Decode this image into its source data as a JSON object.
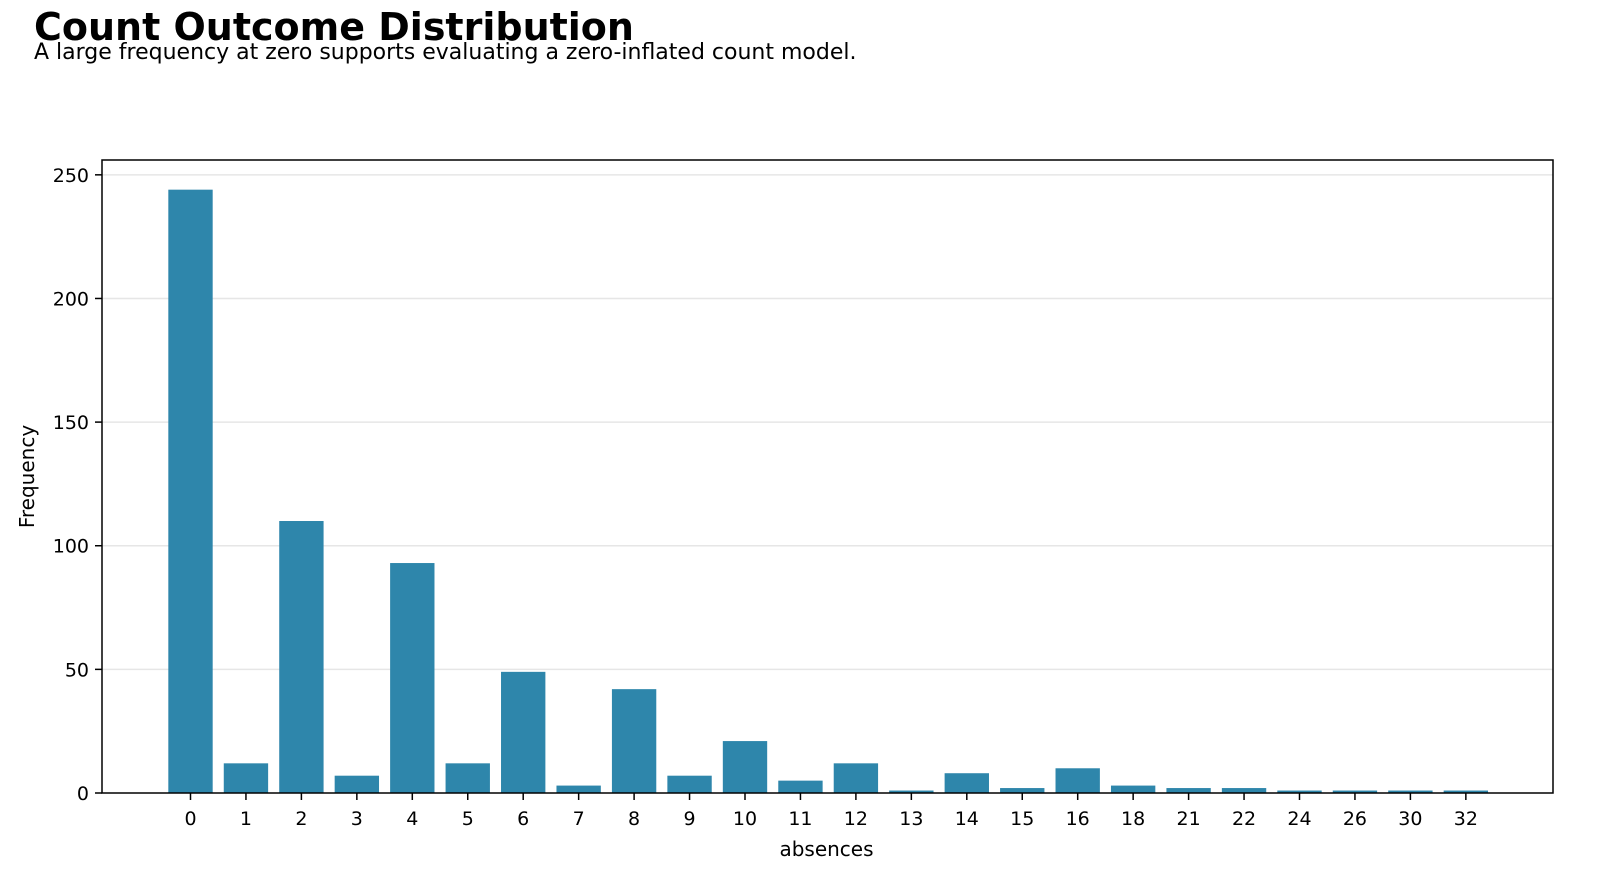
{
  "title": "Count Outcome Distribution",
  "subtitle": "A large frequency at zero supports evaluating a zero-inflated count model.",
  "chart_data": {
    "type": "bar",
    "title": "Count Outcome Distribution",
    "subtitle": "A large frequency at zero supports evaluating a zero-inflated count model.",
    "xlabel": "absences",
    "ylabel": "Frequency",
    "categories": [
      "0",
      "1",
      "2",
      "3",
      "4",
      "5",
      "6",
      "7",
      "8",
      "9",
      "10",
      "11",
      "12",
      "13",
      "14",
      "15",
      "16",
      "18",
      "21",
      "22",
      "24",
      "26",
      "30",
      "32"
    ],
    "values": [
      244,
      12,
      110,
      7,
      93,
      12,
      49,
      3,
      42,
      7,
      21,
      5,
      12,
      1,
      8,
      2,
      10,
      3,
      2,
      2,
      1,
      1,
      1,
      1
    ],
    "ylim": [
      0,
      256
    ],
    "yticks": [
      0,
      50,
      100,
      150,
      200,
      250
    ],
    "grid": "horizontal",
    "legend": "none",
    "bar_color": "#2e86ab",
    "grid_color": "#e6e6e6"
  }
}
